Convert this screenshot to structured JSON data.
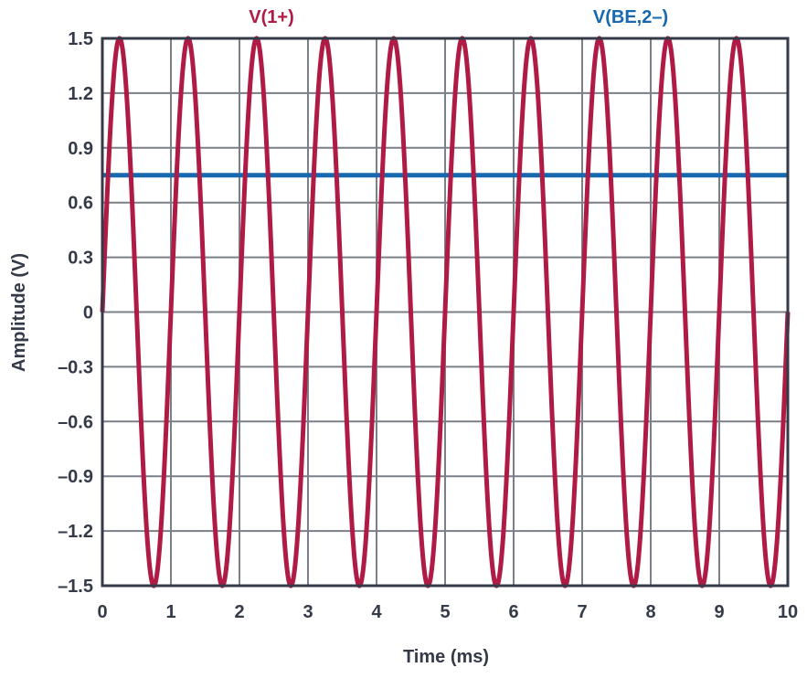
{
  "chart_data": {
    "type": "line",
    "title": "",
    "xlabel": "Time (ms)",
    "ylabel": "Amplitude (V)",
    "xlim": [
      0,
      10
    ],
    "ylim": [
      -1.5,
      1.5
    ],
    "xticks": [
      "0",
      "1",
      "2",
      "3",
      "4",
      "5",
      "6",
      "7",
      "8",
      "9",
      "10"
    ],
    "yticks": [
      "1.5",
      "1.2",
      "0.9",
      "0.6",
      "0.3",
      "0",
      "–0.3",
      "–0.6",
      "–0.9",
      "–1.2",
      "–1.5"
    ],
    "grid": true,
    "legend_placement": "top",
    "series": [
      {
        "name": "V(1+)",
        "kind": "sine",
        "amplitude": 1.5,
        "frequency_khz": 1,
        "offset": 0,
        "color": "#B01B45"
      },
      {
        "name": "V(BE,2–)",
        "kind": "constant",
        "value": 0.75,
        "color": "#1768AE"
      }
    ],
    "colors": {
      "axis": "#343A48",
      "grid": "#7A7F88",
      "text": "#343A48"
    }
  }
}
